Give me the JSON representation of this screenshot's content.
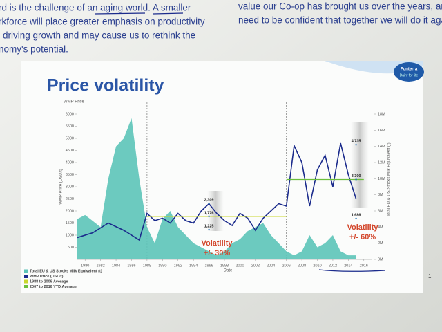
{
  "page": {
    "left_column": [
      "rd is the challenge of an aging world. A smaller",
      "rkforce will place greater emphasis on productivity",
      "driving growth and may cause us to rethink the",
      "nomy's potential."
    ],
    "right_column": [
      "value our Co-op has brought us over the years, and w",
      "need to be confident that together we will do it agai"
    ],
    "logo": [
      "Fonterra",
      "Dairy for life"
    ],
    "page_number": "1"
  },
  "chart_data": {
    "type": "line",
    "title": "Price volatility",
    "y_label_top": "WMP Price",
    "y_label": "WMP Price (USD/t)",
    "y2_label": "Total EU & US Stocks Milk Equivalent (t)",
    "x_label": "Date",
    "xlim": [
      1979,
      2017
    ],
    "xticks": [
      1980,
      1982,
      1984,
      1986,
      1988,
      1990,
      1992,
      1994,
      1996,
      1998,
      2000,
      2002,
      2004,
      2006,
      2008,
      2010,
      2012,
      2014,
      2016
    ],
    "ylim": [
      0,
      6000
    ],
    "yticks": [
      500,
      1000,
      1500,
      2000,
      2500,
      3000,
      3500,
      4000,
      4500,
      5000,
      5500,
      6000
    ],
    "y2lim": [
      0,
      18
    ],
    "y2ticks": [
      {
        "value": 0,
        "label": "0M"
      },
      {
        "value": 2,
        "label": "2M"
      },
      {
        "value": 4,
        "label": "4M"
      },
      {
        "value": 6,
        "label": "6M"
      },
      {
        "value": 8,
        "label": "8M"
      },
      {
        "value": 10,
        "label": "10M"
      },
      {
        "value": 12,
        "label": "12M"
      },
      {
        "value": 14,
        "label": "14M"
      },
      {
        "value": 16,
        "label": "16M"
      },
      {
        "value": 18,
        "label": "18M"
      }
    ],
    "dividers": [
      1988,
      2006
    ],
    "grid": false,
    "series": [
      {
        "name": "Total EU & US Stocks Milk Equivalent (t)",
        "kind": "area",
        "axis": "y2",
        "color": "#5cc4b8",
        "x": [
          1979,
          1980,
          1982,
          1983,
          1984,
          1985,
          1986,
          1987,
          1988,
          1989,
          1990,
          1991,
          1992,
          1993,
          1994,
          1995,
          1996,
          1997,
          1998,
          1999,
          2000,
          2001,
          2002,
          2003,
          2004,
          2005,
          2006,
          2007,
          2008,
          2009,
          2010,
          2011,
          2012,
          2013,
          2014,
          2015
        ],
        "values": [
          5,
          5.5,
          4,
          10,
          14,
          15,
          17.5,
          10,
          4,
          2,
          5,
          6,
          4,
          3,
          2,
          1.5,
          1,
          0.5,
          1,
          2,
          2.5,
          3.5,
          4,
          4.5,
          3,
          2,
          1,
          0.5,
          1,
          3,
          1.5,
          2,
          3,
          1,
          0.5,
          0.5
        ]
      },
      {
        "name": "WMP Price (USD/t)",
        "kind": "line",
        "color": "#1b2b8c",
        "x": [
          1979,
          1981,
          1983,
          1985,
          1987,
          1988,
          1989,
          1990,
          1991,
          1992,
          1993,
          1994,
          1995,
          1996,
          1997,
          1998,
          1999,
          2000,
          2001,
          2002,
          2003,
          2004,
          2005,
          2006,
          2007,
          2008,
          2009,
          2010,
          2011,
          2012,
          2013,
          2014,
          2015
        ],
        "values": [
          900,
          1100,
          1500,
          1200,
          800,
          1900,
          1600,
          1700,
          1500,
          1900,
          1600,
          1500,
          2000,
          2300,
          1900,
          1600,
          1400,
          1900,
          1700,
          1200,
          1700,
          2000,
          2300,
          2200,
          4700,
          4000,
          2200,
          3700,
          4300,
          3000,
          4800,
          3500,
          2500
        ]
      },
      {
        "name": "1988 to 2006 Average",
        "kind": "line",
        "color": "#c8d62e",
        "x": [
          1988,
          2006
        ],
        "values": [
          1776,
          1776
        ]
      },
      {
        "name": "2007 to 2016 YTD Average",
        "kind": "line",
        "color": "#6cbf3c",
        "x": [
          2006,
          2016
        ],
        "values": [
          3300,
          3300
        ]
      }
    ],
    "annotations": [
      {
        "x": 1996,
        "value": 2309,
        "label": "2,309"
      },
      {
        "x": 1996,
        "value": 1776,
        "label": "1,776"
      },
      {
        "x": 1996,
        "value": 1225,
        "label": "1,225"
      },
      {
        "x": 2015,
        "value": 4735,
        "label": "4,735"
      },
      {
        "x": 2015,
        "value": 3300,
        "label": "3,300"
      },
      {
        "x": 2015,
        "value": 1686,
        "label": "1,686"
      }
    ],
    "volatility": [
      [
        "Volatility",
        "+/- 30%"
      ],
      [
        "Volatility",
        "+/- 60%"
      ]
    ]
  }
}
